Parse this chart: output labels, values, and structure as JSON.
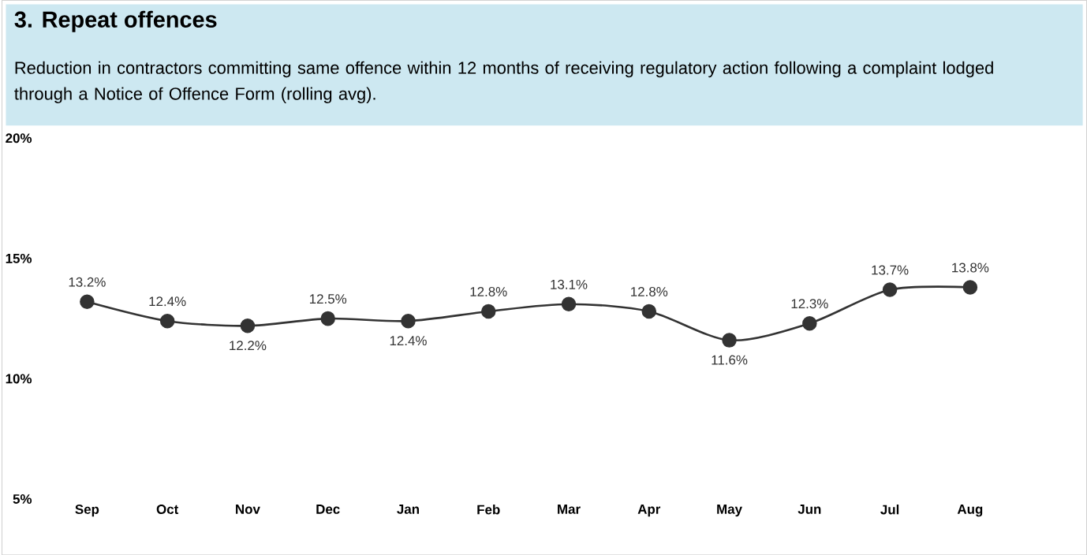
{
  "chart_data": {
    "type": "line",
    "title": "3. Repeat offences",
    "subtitle": "Reduction in contractors committing same offence within 12 months of receiving regulatory action following a complaint lodged through a Notice of Offence Form (rolling avg).",
    "categories": [
      "Sep",
      "Oct",
      "Nov",
      "Dec",
      "Jan",
      "Feb",
      "Mar",
      "Apr",
      "May",
      "Jun",
      "Jul",
      "Aug"
    ],
    "series": [
      {
        "color": "#333333",
        "values": [
          13.2,
          12.4,
          12.2,
          12.5,
          12.4,
          12.8,
          13.1,
          12.8,
          11.6,
          12.3,
          13.7,
          13.8
        ],
        "value_labels": [
          "13.2%",
          "12.4%",
          "12.2%",
          "12.5%",
          "12.4%",
          "12.8%",
          "13.1%",
          "12.8%",
          "11.6%",
          "12.3%",
          "13.7%",
          "13.8%"
        ]
      }
    ],
    "ylim": [
      5,
      20
    ],
    "yticks": [
      {
        "value": 5,
        "label": "5%"
      },
      {
        "value": 10,
        "label": "10%"
      },
      {
        "value": 15,
        "label": "15%"
      },
      {
        "value": 20,
        "label": "20%"
      }
    ],
    "marker": "circle",
    "line_style": "solid"
  }
}
